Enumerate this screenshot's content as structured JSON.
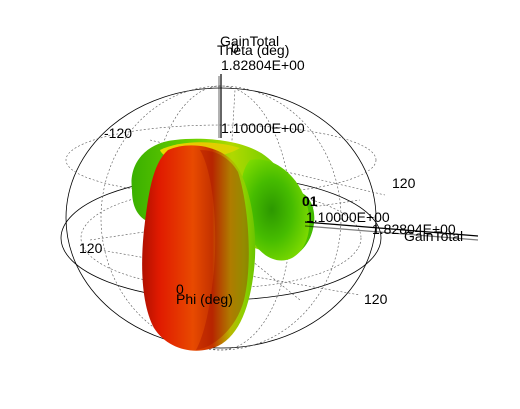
{
  "chart_data": {
    "type": "3d-radiation-pattern",
    "quantity": "GainTotal",
    "max_value": "1.82804E+00",
    "ring_value": "1.10000E+00",
    "partial_label": "01",
    "theta_label": "Theta (deg)",
    "phi_label": "Phi (deg)",
    "z_axis_title": "GainTotal",
    "z_axis_tick": "0",
    "x_axis_title": "GainTotal",
    "tick_labels": {
      "upper_left": "-120",
      "upper_right": "120",
      "lower_left": "120",
      "lower_right": "120",
      "phi_zero": "0"
    },
    "colormap": [
      "#2fd400",
      "#8ee000",
      "#f2e000",
      "#ff7a00",
      "#f01a00"
    ]
  }
}
